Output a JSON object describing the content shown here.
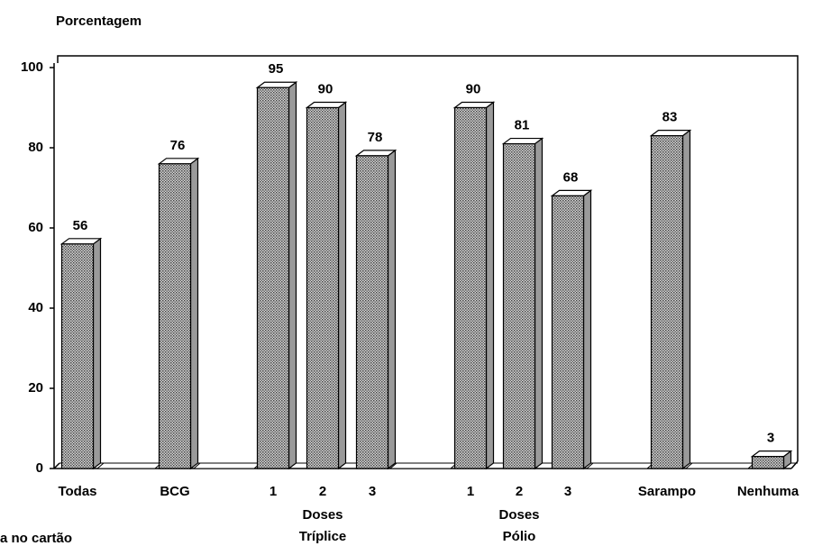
{
  "chart_data": {
    "type": "bar",
    "y_label": "Porcentagem",
    "categories": [
      "Todas",
      "BCG",
      "1",
      "2",
      "3",
      "1",
      "2",
      "3",
      "Sarampo",
      "Nenhuma"
    ],
    "values": [
      56,
      76,
      95,
      90,
      78,
      90,
      81,
      68,
      83,
      3
    ],
    "groups": [
      [
        "Doses",
        "Tríplice"
      ],
      [
        "Doses",
        "Pólio"
      ]
    ],
    "annotations": [
      "a no cartão"
    ],
    "color": "#9a9a9a",
    "ylim": [
      0,
      100
    ],
    "yticks": [
      0,
      20,
      40,
      60,
      80,
      100
    ]
  }
}
